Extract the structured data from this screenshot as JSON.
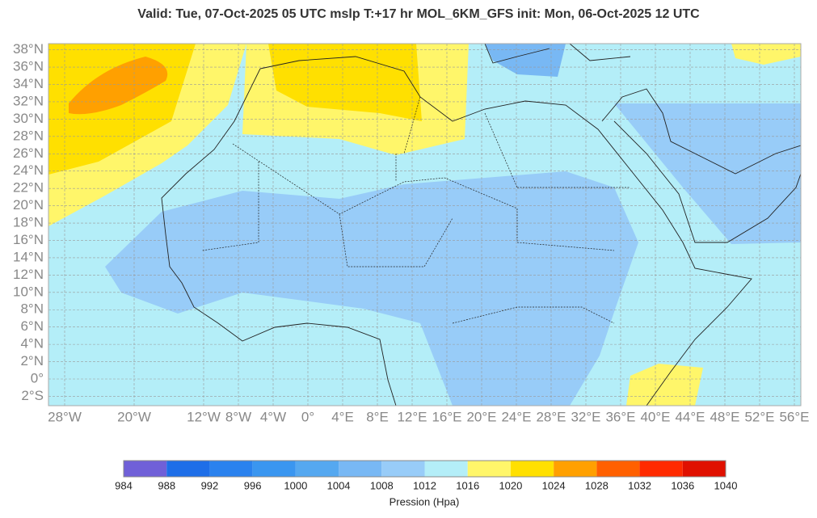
{
  "header": {
    "title": "Valid: Tue, 07-Oct-2025   05 UTC   mslp   T:+17 hr   MOL_6KM_GFS      init: Mon, 06-Oct-2025   12 UTC"
  },
  "map": {
    "lat_ticks": [
      {
        "value": 38,
        "label": "38°N"
      },
      {
        "value": 36,
        "label": "36°N"
      },
      {
        "value": 34,
        "label": "34°N"
      },
      {
        "value": 32,
        "label": "32°N"
      },
      {
        "value": 30,
        "label": "30°N"
      },
      {
        "value": 28,
        "label": "28°N"
      },
      {
        "value": 26,
        "label": "26°N"
      },
      {
        "value": 24,
        "label": "24°N"
      },
      {
        "value": 22,
        "label": "22°N"
      },
      {
        "value": 20,
        "label": "20°N"
      },
      {
        "value": 18,
        "label": "18°N"
      },
      {
        "value": 16,
        "label": "16°N"
      },
      {
        "value": 14,
        "label": "14°N"
      },
      {
        "value": 12,
        "label": "12°N"
      },
      {
        "value": 10,
        "label": "10°N"
      },
      {
        "value": 8,
        "label": "8°N"
      },
      {
        "value": 6,
        "label": "6°N"
      },
      {
        "value": 4,
        "label": "4°N"
      },
      {
        "value": 2,
        "label": "2°N"
      },
      {
        "value": 0,
        "label": "0°"
      },
      {
        "value": -2,
        "label": "2°S"
      }
    ],
    "lon_ticks": [
      {
        "value": -28,
        "label": "28°W"
      },
      {
        "value": -20,
        "label": "20°W"
      },
      {
        "value": -12,
        "label": "12°W"
      },
      {
        "value": -8,
        "label": "8°W"
      },
      {
        "value": -4,
        "label": "4°W"
      },
      {
        "value": 0,
        "label": "0°"
      },
      {
        "value": 4,
        "label": "4°E"
      },
      {
        "value": 8,
        "label": "8°E"
      },
      {
        "value": 12,
        "label": "12°E"
      },
      {
        "value": 16,
        "label": "16°E"
      },
      {
        "value": 20,
        "label": "20°E"
      },
      {
        "value": 24,
        "label": "24°E"
      },
      {
        "value": 28,
        "label": "28°E"
      },
      {
        "value": 32,
        "label": "32°E"
      },
      {
        "value": 36,
        "label": "36°E"
      },
      {
        "value": 40,
        "label": "40°E"
      },
      {
        "value": 44,
        "label": "44°E"
      },
      {
        "value": 48,
        "label": "48°E"
      },
      {
        "value": 52,
        "label": "52°E"
      },
      {
        "value": 56,
        "label": "56°E"
      }
    ]
  },
  "colorbar": {
    "label": "Pression (Hpa)",
    "levels": [
      984,
      988,
      992,
      996,
      1000,
      1004,
      1008,
      1012,
      1016,
      1020,
      1024,
      1028,
      1032,
      1036,
      1040
    ],
    "colors": [
      "#7060d8",
      "#1e6ee8",
      "#2a82ee",
      "#3a96f0",
      "#55a8f0",
      "#78b8f4",
      "#98ccf8",
      "#b4eef8",
      "#fff66a",
      "#ffe000",
      "#ffa000",
      "#ff6000",
      "#ff2a00",
      "#e01000"
    ]
  }
}
